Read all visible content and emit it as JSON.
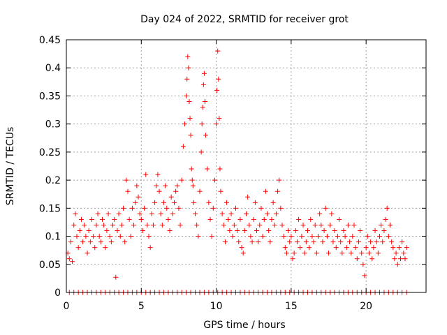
{
  "chart_data": {
    "type": "scatter",
    "title": "Day 024 of 2022, SRMTID for receiver grot",
    "xlabel": "GPS time / hours",
    "ylabel": "SRMTID / TECUs",
    "xlim": [
      0,
      24
    ],
    "ylim": [
      0,
      0.45
    ],
    "xticks": [
      "0",
      "5",
      "10",
      "15",
      "20"
    ],
    "yticks": [
      "0",
      "0.05",
      "0.1",
      "0.15",
      "0.2",
      "0.25",
      "0.3",
      "0.35",
      "0.4",
      "0.45"
    ],
    "grid": true,
    "marker": "plus",
    "color": "#ff0000",
    "series": [
      {
        "x": [
          0.1,
          0.2,
          0.3,
          0.4,
          0.5,
          0.6,
          0.7,
          0.8,
          0.9,
          1.0,
          1.1,
          1.2,
          1.3,
          1.4,
          1.5,
          1.6,
          1.7,
          1.8,
          1.9,
          2.0,
          2.1,
          2.2,
          2.3,
          2.4,
          2.5,
          2.6,
          2.7,
          2.8,
          2.9,
          3.0,
          3.1,
          3.2,
          3.3,
          3.4,
          3.5,
          3.6,
          3.7,
          3.8,
          3.9,
          4.0,
          4.1,
          4.2,
          4.3,
          4.4,
          4.5,
          4.6,
          4.7,
          4.8,
          4.9,
          5.0,
          5.1,
          5.2,
          5.3,
          5.4,
          5.5,
          5.6,
          5.7,
          5.8,
          5.9,
          6.0,
          6.1,
          6.2,
          6.3,
          6.4,
          6.5,
          6.6,
          6.7,
          6.8,
          6.9,
          7.0,
          7.1,
          7.2,
          7.3,
          7.4,
          7.5,
          7.6,
          7.7,
          7.8,
          7.9,
          8.0,
          8.05,
          8.1,
          8.15,
          8.2,
          8.25,
          8.3,
          8.35,
          8.4,
          8.45,
          8.5,
          8.6,
          8.7,
          8.8,
          8.9,
          9.0,
          9.05,
          9.1,
          9.15,
          9.2,
          9.25,
          9.3,
          9.4,
          9.5,
          9.6,
          9.7,
          9.8,
          9.9,
          10.0,
          10.05,
          10.1,
          10.15,
          10.2,
          10.25,
          10.3,
          10.4,
          10.5,
          10.6,
          10.7,
          10.8,
          10.9,
          11.0,
          11.1,
          11.2,
          11.3,
          11.4,
          11.5,
          11.6,
          11.7,
          11.8,
          11.9,
          12.0,
          12.1,
          12.2,
          12.3,
          12.4,
          12.5,
          12.6,
          12.7,
          12.8,
          12.9,
          13.0,
          13.1,
          13.2,
          13.3,
          13.4,
          13.5,
          13.6,
          13.7,
          13.8,
          13.9,
          14.0,
          14.1,
          14.2,
          14.3,
          14.4,
          14.5,
          14.6,
          14.7,
          14.8,
          14.9,
          15.0,
          15.1,
          15.2,
          15.3,
          15.4,
          15.5,
          15.6,
          15.7,
          15.8,
          15.9,
          16.0,
          16.1,
          16.2,
          16.3,
          16.4,
          16.5,
          16.6,
          16.7,
          16.8,
          16.9,
          17.0,
          17.1,
          17.2,
          17.3,
          17.4,
          17.5,
          17.6,
          17.7,
          17.8,
          17.9,
          18.0,
          18.1,
          18.2,
          18.3,
          18.4,
          18.5,
          18.6,
          18.7,
          18.8,
          18.9,
          19.0,
          19.1,
          19.2,
          19.3,
          19.4,
          19.5,
          19.6,
          19.7,
          19.8,
          19.9,
          20.0,
          20.1,
          20.2,
          20.3,
          20.4,
          20.5,
          20.6,
          20.7,
          20.8,
          20.9,
          21.0,
          21.1,
          21.2,
          21.3,
          21.4,
          21.5,
          21.6,
          21.7,
          21.8,
          21.9,
          22.0,
          22.1,
          22.2,
          22.3,
          22.4,
          22.5,
          22.6,
          22.7
        ],
        "y": [
          0.07,
          0.06,
          0.09,
          0.055,
          0.12,
          0.14,
          0.1,
          0.08,
          0.11,
          0.13,
          0.09,
          0.12,
          0.1,
          0.07,
          0.11,
          0.09,
          0.13,
          0.1,
          0.08,
          0.12,
          0.14,
          0.1,
          0.09,
          0.13,
          0.12,
          0.08,
          0.11,
          0.14,
          0.1,
          0.09,
          0.12,
          0.13,
          0.027,
          0.11,
          0.14,
          0.1,
          0.12,
          0.15,
          0.09,
          0.2,
          0.18,
          0.13,
          0.1,
          0.15,
          0.12,
          0.16,
          0.19,
          0.17,
          0.14,
          0.13,
          0.11,
          0.15,
          0.21,
          0.12,
          0.1,
          0.08,
          0.14,
          0.12,
          0.16,
          0.19,
          0.21,
          0.18,
          0.14,
          0.12,
          0.16,
          0.19,
          0.15,
          0.13,
          0.11,
          0.17,
          0.14,
          0.16,
          0.18,
          0.19,
          0.15,
          0.12,
          0.2,
          0.26,
          0.3,
          0.35,
          0.38,
          0.42,
          0.4,
          0.34,
          0.31,
          0.28,
          0.22,
          0.2,
          0.19,
          0.16,
          0.14,
          0.12,
          0.1,
          0.18,
          0.25,
          0.3,
          0.33,
          0.37,
          0.39,
          0.34,
          0.28,
          0.22,
          0.16,
          0.13,
          0.1,
          0.15,
          0.2,
          0.3,
          0.36,
          0.43,
          0.38,
          0.31,
          0.22,
          0.18,
          0.14,
          0.12,
          0.09,
          0.16,
          0.13,
          0.11,
          0.14,
          0.1,
          0.12,
          0.15,
          0.11,
          0.09,
          0.13,
          0.08,
          0.07,
          0.11,
          0.14,
          0.17,
          0.12,
          0.1,
          0.09,
          0.13,
          0.16,
          0.11,
          0.09,
          0.12,
          0.15,
          0.1,
          0.13,
          0.18,
          0.14,
          0.11,
          0.09,
          0.13,
          0.16,
          0.12,
          0.14,
          0.18,
          0.2,
          0.15,
          0.12,
          0.1,
          0.08,
          0.07,
          0.11,
          0.09,
          0.1,
          0.06,
          0.07,
          0.11,
          0.09,
          0.13,
          0.08,
          0.1,
          0.12,
          0.07,
          0.09,
          0.11,
          0.08,
          0.13,
          0.1,
          0.09,
          0.12,
          0.07,
          0.1,
          0.14,
          0.12,
          0.09,
          0.11,
          0.15,
          0.1,
          0.07,
          0.12,
          0.14,
          0.09,
          0.11,
          0.08,
          0.1,
          0.13,
          0.09,
          0.07,
          0.11,
          0.1,
          0.08,
          0.12,
          0.09,
          0.07,
          0.1,
          0.12,
          0.08,
          0.06,
          0.09,
          0.11,
          0.07,
          0.05,
          0.03,
          0.08,
          0.1,
          0.07,
          0.09,
          0.06,
          0.08,
          0.11,
          0.09,
          0.07,
          0.1,
          0.12,
          0.09,
          0.11,
          0.13,
          0.15,
          0.1,
          0.12,
          0.09,
          0.08,
          0.06,
          0.07,
          0.05,
          0.08,
          0.06,
          0.09,
          0.07,
          0.06,
          0.08
        ]
      },
      {
        "x": [
          0.2,
          0.5,
          0.8,
          1.1,
          1.4,
          1.7,
          2.0,
          2.3,
          2.6,
          2.9,
          3.2,
          3.5,
          3.8,
          4.1,
          4.4,
          4.7,
          5.0,
          5.3,
          5.6,
          5.9,
          6.2,
          6.5,
          6.8,
          7.1,
          7.4,
          7.7,
          8.0,
          8.3,
          8.6,
          8.9,
          9.2,
          9.5,
          9.8,
          10.1,
          10.4,
          10.7,
          11.0,
          11.3,
          11.6,
          11.9,
          12.2,
          12.5,
          12.8,
          13.1,
          13.4,
          13.7,
          14.0,
          14.3,
          14.6,
          14.9,
          15.2,
          15.5,
          15.8,
          16.1,
          16.4,
          16.7,
          17.0,
          17.3,
          17.6,
          17.9,
          18.2,
          18.5,
          18.8,
          19.1,
          19.4,
          19.7,
          20.0,
          20.3,
          20.6,
          20.9,
          21.2,
          21.5,
          21.8,
          22.1,
          22.4,
          22.7
        ],
        "y": [
          0,
          0,
          0,
          0,
          0,
          0,
          0,
          0,
          0,
          0,
          0,
          0,
          0,
          0,
          0,
          0,
          0,
          0,
          0,
          0,
          0,
          0,
          0,
          0,
          0,
          0,
          0,
          0,
          0,
          0,
          0,
          0,
          0,
          0,
          0,
          0,
          0,
          0,
          0,
          0,
          0,
          0,
          0,
          0,
          0,
          0,
          0,
          0,
          0,
          0,
          0,
          0,
          0,
          0,
          0,
          0,
          0,
          0,
          0,
          0,
          0,
          0,
          0,
          0,
          0,
          0,
          0,
          0,
          0,
          0,
          0,
          0,
          0,
          0,
          0,
          0
        ]
      }
    ]
  }
}
